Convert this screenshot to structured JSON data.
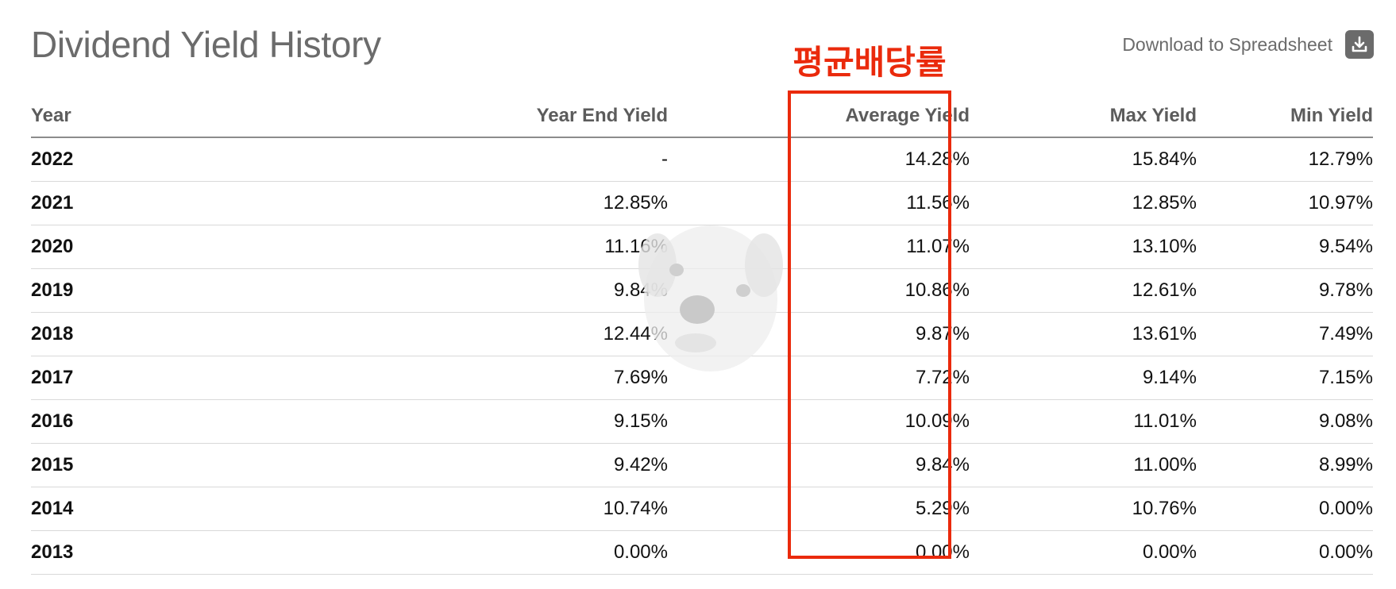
{
  "page": {
    "title": "Dividend Yield History",
    "download_label": "Download to Spreadsheet",
    "download_icon": "download-icon",
    "annotation": "평균배당률",
    "highlight_color": "#ea2a0c",
    "title_color": "#6b6b6b"
  },
  "table": {
    "columns": [
      "Year",
      "Year End Yield",
      "Average Yield",
      "Max Yield",
      "Min Yield"
    ],
    "rows": [
      [
        "2022",
        "-",
        "14.28%",
        "15.84%",
        "12.79%"
      ],
      [
        "2021",
        "12.85%",
        "11.56%",
        "12.85%",
        "10.97%"
      ],
      [
        "2020",
        "11.16%",
        "11.07%",
        "13.10%",
        "9.54%"
      ],
      [
        "2019",
        "9.84%",
        "10.86%",
        "12.61%",
        "9.78%"
      ],
      [
        "2018",
        "12.44%",
        "9.87%",
        "13.61%",
        "7.49%"
      ],
      [
        "2017",
        "7.69%",
        "7.72%",
        "9.14%",
        "7.15%"
      ],
      [
        "2016",
        "9.15%",
        "10.09%",
        "11.01%",
        "9.08%"
      ],
      [
        "2015",
        "9.42%",
        "9.84%",
        "11.00%",
        "8.99%"
      ],
      [
        "2014",
        "10.74%",
        "5.29%",
        "10.76%",
        "0.00%"
      ],
      [
        "2013",
        "0.00%",
        "0.00%",
        "0.00%",
        "0.00%"
      ]
    ]
  }
}
